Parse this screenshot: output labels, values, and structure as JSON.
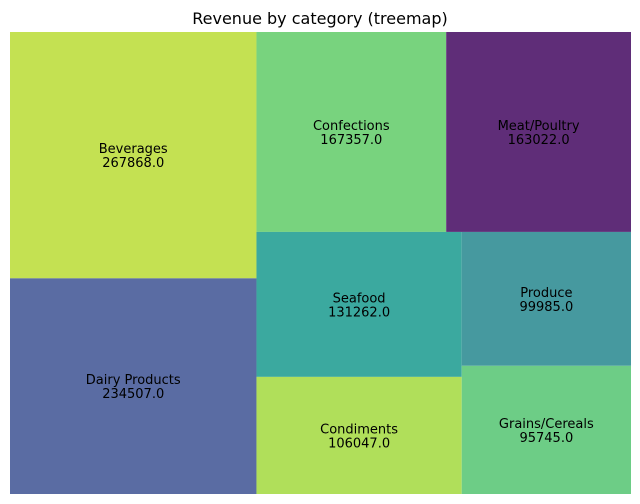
{
  "chart_data": {
    "type": "treemap",
    "title": "Revenue by category (treemap)",
    "items": [
      {
        "name": "Beverages",
        "value": "267868.0",
        "color": "#c4e152"
      },
      {
        "name": "Dairy Products",
        "value": "234507.0",
        "color": "#5a6ca3"
      },
      {
        "name": "Confections",
        "value": "167357.0",
        "color": "#78d37e"
      },
      {
        "name": "Meat/Poultry",
        "value": "163022.0",
        "color": "#5f2d78"
      },
      {
        "name": "Seafood",
        "value": "131262.0",
        "color": "#3ba99f"
      },
      {
        "name": "Condiments",
        "value": "106047.0",
        "color": "#b0df5a"
      },
      {
        "name": "Produce",
        "value": "99985.0",
        "color": "#46999f"
      },
      {
        "name": "Grains/Cereals",
        "value": "95745.0",
        "color": "#6dcd86"
      }
    ],
    "grid": false,
    "axes": false
  }
}
